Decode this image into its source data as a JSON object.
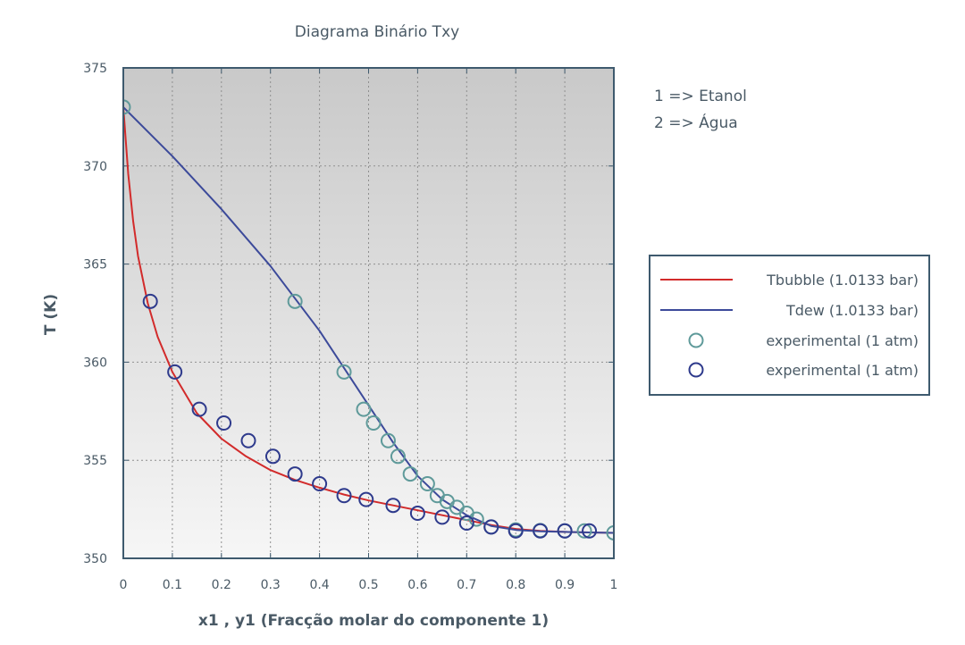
{
  "chart_data": {
    "type": "line",
    "title": "Diagrama Binário Txy",
    "xlabel": "x1 , y1 (Fracção molar do componente 1)",
    "ylabel": "T (K)",
    "xlim": [
      0,
      1
    ],
    "ylim": [
      350,
      375
    ],
    "x_ticks": [
      "0",
      "0.1",
      "0.2",
      "0.3",
      "0.4",
      "0.5",
      "0.6",
      "0.7",
      "0.8",
      "0.9",
      "1"
    ],
    "y_ticks": [
      "350",
      "355",
      "360",
      "365",
      "370",
      "375"
    ],
    "grid": true,
    "legend_placement": "right",
    "annotations": [
      "1 => Etanol",
      "2 => Água"
    ],
    "colors": {
      "bubble": "#d22b2b",
      "dew": "#3c4a9a",
      "exp_y": "#5f9a9a",
      "exp_x": "#2e3a8c"
    },
    "series": [
      {
        "name": "Tbubble (1.0133 bar)",
        "kind": "line",
        "x": [
          0,
          0.01,
          0.02,
          0.03,
          0.05,
          0.07,
          0.1,
          0.15,
          0.2,
          0.25,
          0.3,
          0.35,
          0.4,
          0.45,
          0.5,
          0.55,
          0.6,
          0.65,
          0.7,
          0.75,
          0.8,
          0.85,
          0.9,
          0.95,
          1.0
        ],
        "y": [
          373.0,
          369.6,
          367.2,
          365.4,
          363.0,
          361.3,
          359.5,
          357.4,
          356.1,
          355.2,
          354.5,
          354.0,
          353.6,
          353.25,
          352.95,
          352.7,
          352.45,
          352.2,
          351.95,
          351.7,
          351.5,
          351.4,
          351.35,
          351.32,
          351.3
        ]
      },
      {
        "name": "Tdew (1.0133 bar)",
        "kind": "line",
        "x": [
          0,
          0.1,
          0.2,
          0.3,
          0.4,
          0.5,
          0.55,
          0.6,
          0.65,
          0.7,
          0.75,
          0.8,
          0.85,
          0.9,
          0.95,
          1.0
        ],
        "y": [
          373.0,
          370.5,
          367.8,
          364.9,
          361.6,
          357.8,
          355.9,
          354.2,
          353.0,
          352.2,
          351.65,
          351.45,
          351.38,
          351.35,
          351.32,
          351.3
        ]
      },
      {
        "name": "experimental (1 atm)",
        "kind": "scatter",
        "x": [
          0.0,
          0.35,
          0.45,
          0.49,
          0.51,
          0.54,
          0.56,
          0.585,
          0.62,
          0.64,
          0.66,
          0.68,
          0.7,
          0.72,
          0.75,
          0.8,
          0.85,
          0.9,
          0.94,
          1.0
        ],
        "y": [
          373.0,
          363.1,
          359.5,
          357.6,
          356.9,
          356.0,
          355.2,
          354.3,
          353.8,
          353.2,
          352.9,
          352.6,
          352.3,
          352.0,
          351.6,
          351.45,
          351.42,
          351.4,
          351.4,
          351.3
        ]
      },
      {
        "name": "experimental (1 atm)",
        "kind": "scatter",
        "x": [
          0.055,
          0.105,
          0.155,
          0.205,
          0.255,
          0.305,
          0.35,
          0.4,
          0.45,
          0.495,
          0.55,
          0.6,
          0.65,
          0.7,
          0.75,
          0.8,
          0.85,
          0.9,
          0.95
        ],
        "y": [
          363.1,
          359.5,
          357.6,
          356.9,
          356.0,
          355.2,
          354.3,
          353.8,
          353.2,
          353.0,
          352.7,
          352.3,
          352.1,
          351.8,
          351.6,
          351.4,
          351.4,
          351.4,
          351.4
        ]
      }
    ]
  }
}
